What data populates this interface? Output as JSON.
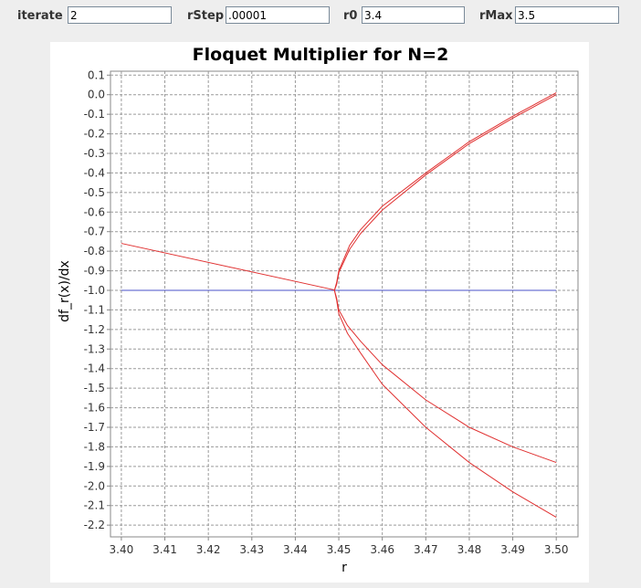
{
  "controls": {
    "iterate": {
      "label": "iterate",
      "value": "2"
    },
    "rStep": {
      "label": "rStep",
      "value": ".00001"
    },
    "r0": {
      "label": "r0",
      "value": "3.4"
    },
    "rMax": {
      "label": "rMax",
      "value": "3.5"
    }
  },
  "chart_data": {
    "type": "line",
    "title": "Floquet Multiplier for N=2",
    "xlabel": "r",
    "ylabel": "df_r(x)/dx",
    "xlim": [
      3.3975,
      3.505
    ],
    "ylim": [
      -2.26,
      0.12
    ],
    "x_ticks": [
      "3.40",
      "3.41",
      "3.42",
      "3.43",
      "3.44",
      "3.45",
      "3.46",
      "3.47",
      "3.48",
      "3.49",
      "3.50"
    ],
    "y_ticks": [
      "0.1",
      "0.0",
      "-0.1",
      "-0.2",
      "-0.3",
      "-0.4",
      "-0.5",
      "-0.6",
      "-0.7",
      "-0.8",
      "-0.9",
      "-1.0",
      "-1.1",
      "-1.2",
      "-1.3",
      "-1.4",
      "-1.5",
      "-1.6",
      "-1.7",
      "-1.8",
      "-1.9",
      "-2.0",
      "-2.1",
      "-2.2"
    ],
    "grid": true,
    "colors": {
      "series": "#e03030",
      "reference": "#4a50c8",
      "grid": "#9a9a9a",
      "axis": "#888888"
    },
    "reference_line": {
      "y": -1.0,
      "x": [
        3.4,
        3.5
      ]
    },
    "series": [
      {
        "x": [
          3.4,
          3.449
        ],
        "y": [
          -0.76,
          -0.998
        ]
      },
      {
        "x": [
          3.449,
          3.4495,
          3.45,
          3.4525,
          3.455,
          3.46,
          3.47,
          3.48,
          3.49,
          3.5
        ],
        "y": [
          -1.0,
          -0.96,
          -0.9,
          -0.77,
          -0.69,
          -0.57,
          -0.4,
          -0.24,
          -0.11,
          0.01
        ]
      },
      {
        "x": [
          3.449,
          3.4495,
          3.45,
          3.4525,
          3.455,
          3.46,
          3.47,
          3.48,
          3.49,
          3.5
        ],
        "y": [
          -1.0,
          -0.97,
          -0.91,
          -0.79,
          -0.71,
          -0.59,
          -0.41,
          -0.25,
          -0.12,
          0.0
        ]
      },
      {
        "x": [
          3.449,
          3.4495,
          3.45,
          3.452,
          3.455,
          3.46,
          3.47,
          3.48,
          3.49,
          3.5
        ],
        "y": [
          -1.0,
          -1.04,
          -1.1,
          -1.18,
          -1.26,
          -1.38,
          -1.56,
          -1.7,
          -1.8,
          -1.88
        ]
      },
      {
        "x": [
          3.449,
          3.4495,
          3.45,
          3.452,
          3.455,
          3.46,
          3.47,
          3.48,
          3.49,
          3.5
        ],
        "y": [
          -1.0,
          -1.05,
          -1.12,
          -1.22,
          -1.32,
          -1.48,
          -1.7,
          -1.88,
          -2.03,
          -2.16
        ]
      }
    ]
  }
}
